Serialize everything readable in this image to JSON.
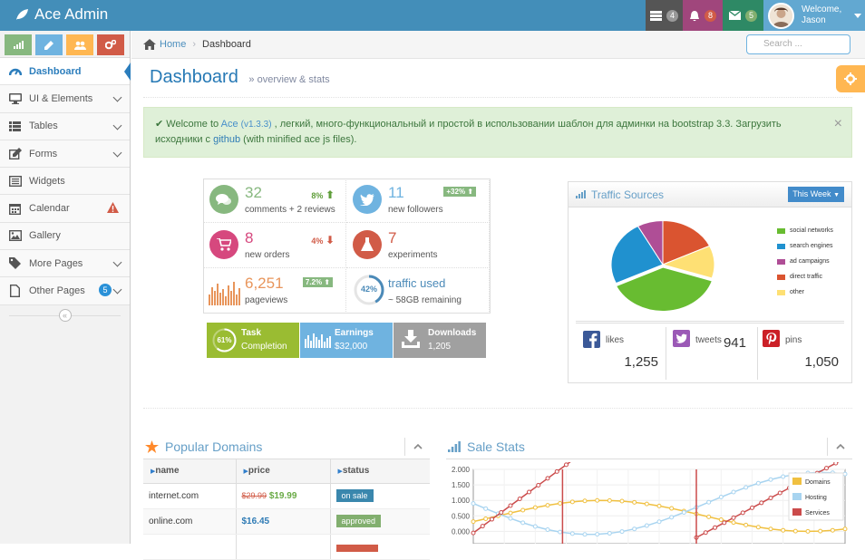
{
  "app": {
    "brand": "Ace Admin"
  },
  "navbar": {
    "tasks_count": "4",
    "notifications_count": "8",
    "messages_count": "5",
    "welcome": "Welcome,",
    "user": "Jason"
  },
  "sidebar": {
    "items": [
      {
        "label": "Dashboard"
      },
      {
        "label": "UI & Elements"
      },
      {
        "label": "Tables"
      },
      {
        "label": "Forms"
      },
      {
        "label": "Widgets"
      },
      {
        "label": "Calendar"
      },
      {
        "label": "Gallery"
      },
      {
        "label": "More Pages"
      },
      {
        "label": "Other Pages",
        "badge": "5"
      }
    ],
    "collapse": "«"
  },
  "breadcrumb": {
    "home": "Home",
    "current": "Dashboard"
  },
  "search": {
    "placeholder": "Search ..."
  },
  "header": {
    "title": "Dashboard",
    "subtitle": "» overview & stats"
  },
  "alert": {
    "pre": "Welcome to ",
    "brand": "Ace",
    "version": "(v1.3.3)",
    "mid": " , легкий, много-функциональный и простой в использовании шаблон для админки на bootstrap 3.3. Загрузить исходники с ",
    "link": "github",
    "post": " (with minified ace js files).",
    "close": "×"
  },
  "infoboxes": [
    {
      "num": "32",
      "text": "comments + 2 reviews",
      "stat": "8%"
    },
    {
      "num": "11",
      "text": "new followers",
      "stat": "+32%"
    },
    {
      "num": "8",
      "text": "new orders",
      "stat": "4%"
    },
    {
      "num": "7",
      "text": "experiments"
    },
    {
      "num": "6,251",
      "text": "pageviews",
      "stat": "7.2%"
    },
    {
      "num": "traffic used",
      "text": "~ 58GB remaining",
      "ring": "42%"
    }
  ],
  "tiles": [
    {
      "ring": "61%",
      "title": "Task",
      "sub": "Completion"
    },
    {
      "title": "Earnings",
      "sub": "$32,000"
    },
    {
      "title": "Downloads",
      "sub": "1,205"
    }
  ],
  "traffic": {
    "title": "Traffic Sources",
    "period": "This Week",
    "legend": [
      "social networks",
      "search engines",
      "ad campaigns",
      "direct traffic",
      "other"
    ],
    "colors": [
      "#68bc31",
      "#2091cf",
      "#af4e96",
      "#da5430",
      "#fee074"
    ],
    "likes_label": "likes",
    "likes": "1,255",
    "tweets_label": "tweets",
    "tweets": "941",
    "pins_label": "pins",
    "pins": "1,050"
  },
  "domains": {
    "title": "Popular Domains",
    "headers": [
      "name",
      "price",
      "status"
    ],
    "rows": [
      {
        "name": "internet.com",
        "old": "$29.99",
        "price": "$19.99",
        "status": "on sale"
      },
      {
        "name": "online.com",
        "price": "$16.45",
        "status": "approved"
      }
    ]
  },
  "sales": {
    "title": "Sale Stats",
    "yticks": [
      "2.000",
      "1.500",
      "1.000",
      "0.500",
      "0.000"
    ],
    "legend": [
      "Domains",
      "Hosting",
      "Services"
    ]
  }
}
